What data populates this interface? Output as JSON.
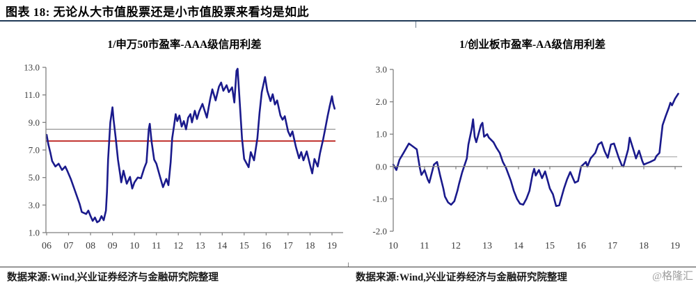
{
  "header": {
    "title": "图表 18:  无论从大市值股票还是小市值股票来看均是如此"
  },
  "footer": {
    "source_left": "数据来源:Wind,兴业证券经济与金融研究院整理",
    "source_right": "数据来源:Wind,兴业证券经济与金融研究院整理",
    "watermark": "@格隆汇"
  },
  "colors": {
    "series": "#1A1A8C",
    "red_line": "#C0302C",
    "gray_line": "#A6A6A6",
    "axis": "#7F7F7F",
    "tick_text": "#3d3d3d",
    "header_rule": "#203A57",
    "footer_rule": "#3A3A3A",
    "watermark": "#9E9E9E"
  },
  "chart_data": [
    {
      "type": "line",
      "title": "1/申万50市盈率-AAA级信用利差",
      "xlabel": "",
      "ylabel": "",
      "grid": false,
      "legend_position": "none",
      "x_range": [
        2006,
        2019
      ],
      "x_tick_labels": [
        "06",
        "07",
        "08",
        "09",
        "10",
        "11",
        "12",
        "13",
        "14",
        "15",
        "16",
        "17",
        "18",
        "19"
      ],
      "ylim": [
        1.0,
        13.0
      ],
      "ytick_step": 2.0,
      "y_tick_labels": [
        "13.0",
        "11.0",
        "9.0",
        "7.0",
        "5.0",
        "3.0",
        "1.0"
      ],
      "x_axis_at": 1.0,
      "ref_lines": [
        {
          "value": 8.5,
          "color": "#A6A6A6",
          "width": 1.5
        },
        {
          "value": 7.65,
          "color": "#C0302C",
          "width": 2
        }
      ],
      "series": [
        {
          "name": "1/申万50市盈率-AAA级信用利差",
          "color": "#1A1A8C",
          "points": [
            [
              2006.0,
              8.1
            ],
            [
              2006.08,
              7.4
            ],
            [
              2006.17,
              6.8
            ],
            [
              2006.25,
              6.2
            ],
            [
              2006.4,
              5.8
            ],
            [
              2006.55,
              6.0
            ],
            [
              2006.7,
              5.55
            ],
            [
              2006.85,
              5.8
            ],
            [
              2006.95,
              5.45
            ],
            [
              2007.1,
              4.9
            ],
            [
              2007.3,
              4.0
            ],
            [
              2007.5,
              3.1
            ],
            [
              2007.6,
              2.5
            ],
            [
              2007.8,
              2.35
            ],
            [
              2007.9,
              2.6
            ],
            [
              2008.0,
              2.2
            ],
            [
              2008.1,
              1.85
            ],
            [
              2008.2,
              2.1
            ],
            [
              2008.3,
              1.75
            ],
            [
              2008.4,
              1.85
            ],
            [
              2008.5,
              2.2
            ],
            [
              2008.6,
              1.9
            ],
            [
              2008.7,
              2.6
            ],
            [
              2008.75,
              3.95
            ],
            [
              2008.8,
              6.3
            ],
            [
              2008.9,
              9.0
            ],
            [
              2009.0,
              10.1
            ],
            [
              2009.05,
              9.2
            ],
            [
              2009.15,
              7.85
            ],
            [
              2009.25,
              6.3
            ],
            [
              2009.35,
              5.2
            ],
            [
              2009.4,
              4.65
            ],
            [
              2009.5,
              5.5
            ],
            [
              2009.65,
              4.55
            ],
            [
              2009.8,
              5.05
            ],
            [
              2009.9,
              4.2
            ],
            [
              2010.0,
              4.65
            ],
            [
              2010.15,
              5.0
            ],
            [
              2010.3,
              4.95
            ],
            [
              2010.45,
              5.7
            ],
            [
              2010.55,
              6.1
            ],
            [
              2010.65,
              8.5
            ],
            [
              2010.7,
              8.9
            ],
            [
              2010.78,
              7.6
            ],
            [
              2010.9,
              6.3
            ],
            [
              2011.0,
              6.0
            ],
            [
              2011.15,
              5.15
            ],
            [
              2011.3,
              4.3
            ],
            [
              2011.45,
              4.9
            ],
            [
              2011.55,
              4.45
            ],
            [
              2011.65,
              6.1
            ],
            [
              2011.72,
              7.85
            ],
            [
              2011.8,
              8.7
            ],
            [
              2011.88,
              9.6
            ],
            [
              2011.95,
              9.1
            ],
            [
              2012.05,
              9.5
            ],
            [
              2012.15,
              8.7
            ],
            [
              2012.25,
              9.1
            ],
            [
              2012.35,
              8.5
            ],
            [
              2012.45,
              9.35
            ],
            [
              2012.55,
              9.6
            ],
            [
              2012.62,
              9.0
            ],
            [
              2012.75,
              9.85
            ],
            [
              2012.85,
              9.25
            ],
            [
              2012.95,
              9.8
            ],
            [
              2013.1,
              10.35
            ],
            [
              2013.3,
              9.35
            ],
            [
              2013.45,
              10.7
            ],
            [
              2013.55,
              11.4
            ],
            [
              2013.7,
              10.6
            ],
            [
              2013.85,
              11.6
            ],
            [
              2013.95,
              11.9
            ],
            [
              2014.05,
              11.3
            ],
            [
              2014.2,
              11.7
            ],
            [
              2014.3,
              11.2
            ],
            [
              2014.45,
              11.55
            ],
            [
              2014.55,
              10.45
            ],
            [
              2014.65,
              12.75
            ],
            [
              2014.7,
              12.9
            ],
            [
              2014.78,
              10.9
            ],
            [
              2014.9,
              7.85
            ],
            [
              2015.0,
              6.35
            ],
            [
              2015.2,
              5.75
            ],
            [
              2015.3,
              6.85
            ],
            [
              2015.45,
              6.25
            ],
            [
              2015.6,
              7.85
            ],
            [
              2015.7,
              9.7
            ],
            [
              2015.8,
              11.2
            ],
            [
              2015.95,
              12.3
            ],
            [
              2016.05,
              11.3
            ],
            [
              2016.2,
              10.55
            ],
            [
              2016.3,
              11.05
            ],
            [
              2016.4,
              10.3
            ],
            [
              2016.5,
              10.6
            ],
            [
              2016.65,
              9.5
            ],
            [
              2016.75,
              9.2
            ],
            [
              2016.85,
              9.45
            ],
            [
              2017.0,
              8.35
            ],
            [
              2017.1,
              8.0
            ],
            [
              2017.2,
              8.35
            ],
            [
              2017.35,
              7.25
            ],
            [
              2017.5,
              6.4
            ],
            [
              2017.6,
              6.85
            ],
            [
              2017.7,
              6.25
            ],
            [
              2017.85,
              6.9
            ],
            [
              2018.0,
              5.9
            ],
            [
              2018.1,
              5.3
            ],
            [
              2018.2,
              6.35
            ],
            [
              2018.35,
              5.8
            ],
            [
              2018.45,
              6.75
            ],
            [
              2018.6,
              7.8
            ],
            [
              2018.7,
              8.6
            ],
            [
              2018.8,
              9.45
            ],
            [
              2018.9,
              10.2
            ],
            [
              2019.0,
              10.9
            ],
            [
              2019.05,
              10.4
            ],
            [
              2019.12,
              10.0
            ]
          ]
        }
      ]
    },
    {
      "type": "line",
      "title": "1/创业板市盈率-AA级信用利差",
      "xlabel": "",
      "ylabel": "",
      "grid": false,
      "legend_position": "none",
      "x_range": [
        2010,
        2019
      ],
      "x_tick_labels": [
        "10",
        "11",
        "12",
        "13",
        "14",
        "15",
        "16",
        "17",
        "18",
        "19"
      ],
      "ylim": [
        -2.0,
        3.0
      ],
      "ytick_step": 1.0,
      "y_tick_labels": [
        "3.0",
        "2.0",
        "1.0",
        "0.0",
        "-1.0",
        "-2.0"
      ],
      "x_axis_at": 0.0,
      "ref_lines": [
        {
          "value": 0.3,
          "color": "#A6A6A6",
          "width": 1.2
        }
      ],
      "series": [
        {
          "name": "1/创业板市盈率-AA级信用利差",
          "color": "#1A1A8C",
          "points": [
            [
              2010.0,
              0.06
            ],
            [
              2010.1,
              -0.11
            ],
            [
              2010.2,
              0.21
            ],
            [
              2010.33,
              0.42
            ],
            [
              2010.5,
              0.71
            ],
            [
              2010.6,
              0.64
            ],
            [
              2010.75,
              0.53
            ],
            [
              2010.85,
              -0.04
            ],
            [
              2010.9,
              -0.26
            ],
            [
              2011.0,
              -0.11
            ],
            [
              2011.1,
              -0.4
            ],
            [
              2011.15,
              -0.5
            ],
            [
              2011.3,
              0.06
            ],
            [
              2011.4,
              0.14
            ],
            [
              2011.5,
              -0.29
            ],
            [
              2011.6,
              -0.68
            ],
            [
              2011.65,
              -0.93
            ],
            [
              2011.75,
              -1.11
            ],
            [
              2011.85,
              -1.18
            ],
            [
              2011.95,
              -1.07
            ],
            [
              2012.05,
              -0.75
            ],
            [
              2012.1,
              -0.54
            ],
            [
              2012.2,
              -0.18
            ],
            [
              2012.35,
              0.25
            ],
            [
              2012.4,
              0.68
            ],
            [
              2012.5,
              1.14
            ],
            [
              2012.55,
              1.46
            ],
            [
              2012.6,
              0.92
            ],
            [
              2012.65,
              0.75
            ],
            [
              2012.8,
              1.28
            ],
            [
              2012.85,
              1.35
            ],
            [
              2012.9,
              0.92
            ],
            [
              2013.0,
              1.0
            ],
            [
              2013.05,
              0.9
            ],
            [
              2013.2,
              0.75
            ],
            [
              2013.3,
              0.57
            ],
            [
              2013.4,
              0.42
            ],
            [
              2013.5,
              0.14
            ],
            [
              2013.6,
              -0.04
            ],
            [
              2013.75,
              -0.43
            ],
            [
              2013.85,
              -0.75
            ],
            [
              2013.95,
              -1.0
            ],
            [
              2014.05,
              -1.15
            ],
            [
              2014.15,
              -1.18
            ],
            [
              2014.25,
              -1.0
            ],
            [
              2014.35,
              -0.75
            ],
            [
              2014.45,
              -0.22
            ],
            [
              2014.5,
              -0.07
            ],
            [
              2014.55,
              -0.28
            ],
            [
              2014.65,
              -0.11
            ],
            [
              2014.75,
              -0.36
            ],
            [
              2014.85,
              -0.15
            ],
            [
              2015.0,
              -0.68
            ],
            [
              2015.1,
              -0.86
            ],
            [
              2015.2,
              -1.22
            ],
            [
              2015.3,
              -1.2
            ],
            [
              2015.45,
              -0.68
            ],
            [
              2015.55,
              -0.4
            ],
            [
              2015.65,
              -0.17
            ],
            [
              2015.8,
              -0.5
            ],
            [
              2015.9,
              -0.45
            ],
            [
              2016.0,
              0.0
            ],
            [
              2016.15,
              0.14
            ],
            [
              2016.2,
              0.0
            ],
            [
              2016.3,
              0.25
            ],
            [
              2016.45,
              0.42
            ],
            [
              2016.55,
              0.68
            ],
            [
              2016.65,
              0.75
            ],
            [
              2016.75,
              0.47
            ],
            [
              2016.85,
              0.27
            ],
            [
              2016.95,
              0.68
            ],
            [
              2017.05,
              0.71
            ],
            [
              2017.2,
              0.27
            ],
            [
              2017.3,
              0.03
            ],
            [
              2017.35,
              0.0
            ],
            [
              2017.5,
              0.53
            ],
            [
              2017.55,
              0.89
            ],
            [
              2017.7,
              0.42
            ],
            [
              2017.75,
              0.25
            ],
            [
              2017.85,
              0.49
            ],
            [
              2017.95,
              0.17
            ],
            [
              2018.0,
              0.06
            ],
            [
              2018.1,
              0.1
            ],
            [
              2018.2,
              0.14
            ],
            [
              2018.35,
              0.21
            ],
            [
              2018.4,
              0.32
            ],
            [
              2018.5,
              0.42
            ],
            [
              2018.55,
              0.85
            ],
            [
              2018.6,
              1.28
            ],
            [
              2018.7,
              1.56
            ],
            [
              2018.8,
              1.82
            ],
            [
              2018.85,
              1.97
            ],
            [
              2018.9,
              1.89
            ],
            [
              2019.0,
              2.1
            ],
            [
              2019.1,
              2.25
            ]
          ]
        }
      ]
    }
  ]
}
